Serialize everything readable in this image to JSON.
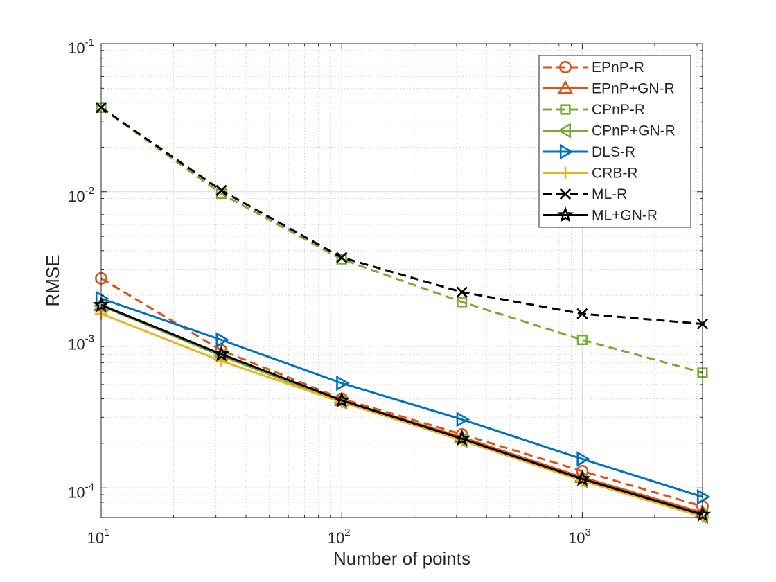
{
  "chart_data": {
    "type": "line",
    "scale": {
      "x": "log",
      "y": "log"
    },
    "xlabel": "Number of points",
    "ylabel": "RMSE",
    "xlim": [
      10,
      3162
    ],
    "ylim": [
      6.31e-05,
      0.1
    ],
    "grid": true,
    "minor_grid": true,
    "legend_position": "top-right",
    "x": [
      10,
      31.6,
      100,
      316,
      1000,
      3162
    ],
    "x_ticks": [
      {
        "value": 10,
        "base": "10",
        "exp": "1"
      },
      {
        "value": 100,
        "base": "10",
        "exp": "2"
      },
      {
        "value": 1000,
        "base": "10",
        "exp": "3"
      }
    ],
    "y_ticks": [
      {
        "value": 0.0001,
        "base": "10",
        "exp": "-4"
      },
      {
        "value": 0.001,
        "base": "10",
        "exp": "-3"
      },
      {
        "value": 0.01,
        "base": "10",
        "exp": "-2"
      },
      {
        "value": 0.1,
        "base": "10",
        "exp": "-1"
      }
    ],
    "series": [
      {
        "name": "EPnP-R",
        "color": "#d95319",
        "dash": "dashed",
        "marker": "circle",
        "values": [
          0.0026,
          0.00085,
          0.0004,
          0.00023,
          0.00013,
          7.5e-05
        ]
      },
      {
        "name": "EPnP+GN-R",
        "color": "#d95319",
        "dash": "solid",
        "marker": "triangle-up",
        "values": [
          0.0017,
          0.0008,
          0.00039,
          0.00022,
          0.000118,
          6.8e-05
        ]
      },
      {
        "name": "CPnP-R",
        "color": "#77ac30",
        "dash": "dashed",
        "marker": "square",
        "values": [
          0.037,
          0.0097,
          0.0035,
          0.0018,
          0.001,
          0.0006
        ]
      },
      {
        "name": "CPnP+GN-R",
        "color": "#77ac30",
        "dash": "solid",
        "marker": "triangle-left",
        "values": [
          0.0017,
          0.00078,
          0.00038,
          0.00021,
          0.000112,
          6.4e-05
        ]
      },
      {
        "name": "DLS-R",
        "color": "#0072bd",
        "dash": "solid",
        "marker": "triangle-right",
        "values": [
          0.0019,
          0.001,
          0.00051,
          0.00029,
          0.000157,
          8.7e-05
        ]
      },
      {
        "name": "CRB-R",
        "color": "#edb120",
        "dash": "solid",
        "marker": "plus",
        "values": [
          0.0015,
          0.00072,
          0.00038,
          0.00021,
          0.000112,
          6.4e-05
        ]
      },
      {
        "name": "ML-R",
        "color": "#000000",
        "dash": "dashed",
        "marker": "x",
        "values": [
          0.037,
          0.0102,
          0.0036,
          0.0021,
          0.0015,
          0.00128
        ]
      },
      {
        "name": "ML+GN-R",
        "color": "#000000",
        "dash": "solid",
        "marker": "pentagram",
        "values": [
          0.00172,
          0.0008,
          0.00039,
          0.000215,
          0.000115,
          6.6e-05
        ]
      }
    ]
  }
}
